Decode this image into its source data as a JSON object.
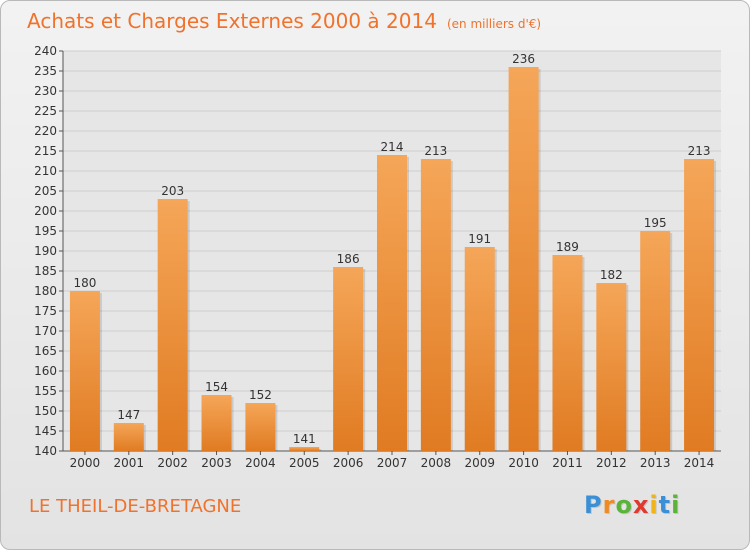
{
  "header": {
    "title": "Achats et Charges Externes 2000 à 2014",
    "subtitle": "(en milliers d'€)"
  },
  "footer": {
    "commune": "LE THEIL-DE-BRETAGNE",
    "logo_letters": [
      "P",
      "r",
      "o",
      "x",
      "i",
      "t",
      "i"
    ],
    "logo_colors": [
      "#3a8fd6",
      "#f08a24",
      "#5bb33a",
      "#e03a2e",
      "#f0b418",
      "#3a8fd6",
      "#5bb33a"
    ]
  },
  "chart_data": {
    "type": "bar",
    "categories": [
      "2000",
      "2001",
      "2002",
      "2003",
      "2004",
      "2005",
      "2006",
      "2007",
      "2008",
      "2009",
      "2010",
      "2011",
      "2012",
      "2013",
      "2014"
    ],
    "values": [
      180,
      147,
      203,
      154,
      152,
      141,
      186,
      214,
      213,
      191,
      236,
      189,
      182,
      195,
      213
    ],
    "ylim": [
      140,
      240
    ],
    "ytick_step": 5,
    "grid": true,
    "bar_color_top": "#f5a658",
    "bar_color_bottom": "#e07b22"
  }
}
